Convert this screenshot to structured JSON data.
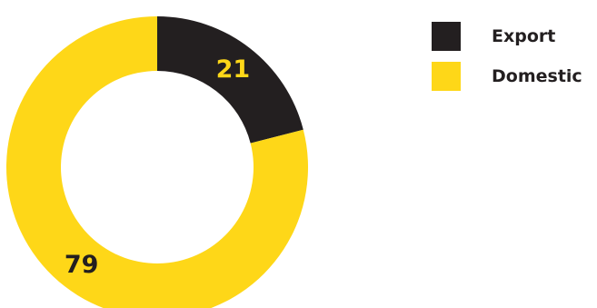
{
  "chart_data": {
    "type": "pie",
    "donut": true,
    "categories": [
      "Export",
      "Domestic"
    ],
    "values": [
      21,
      79
    ],
    "colors": [
      "#231f20",
      "#fed718"
    ],
    "label_colors": [
      "#fed718",
      "#231f20"
    ],
    "legend": {
      "placement": "top-right",
      "items": [
        {
          "label": "Export",
          "color": "#231f20"
        },
        {
          "label": "Domestic",
          "color": "#fed718"
        }
      ]
    },
    "title": ""
  }
}
